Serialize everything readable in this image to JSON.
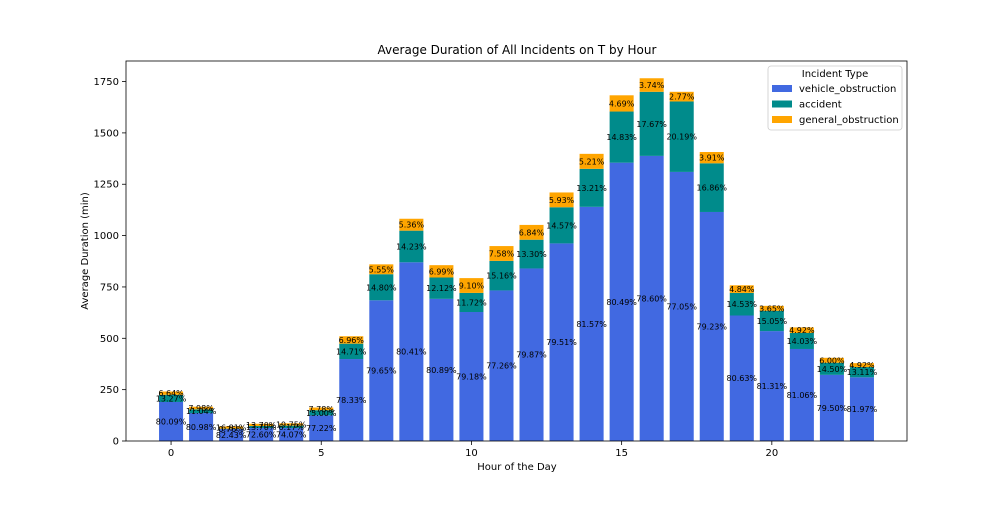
{
  "chart_data": {
    "type": "bar",
    "stacked": true,
    "title": "Average Duration of All Incidents on T by Hour",
    "xlabel": "Hour of the Day",
    "ylabel": "Average Duration (min)",
    "x": [
      0,
      1,
      2,
      3,
      4,
      5,
      6,
      7,
      8,
      9,
      10,
      11,
      12,
      13,
      14,
      15,
      16,
      17,
      18,
      19,
      20,
      21,
      22,
      23
    ],
    "xlim": [
      -1.5,
      24.5
    ],
    "ylim": [
      0,
      1850
    ],
    "xticks": [
      0,
      5,
      10,
      15,
      20
    ],
    "xtick_labels": [
      "0",
      "5",
      "10",
      "15",
      "20"
    ],
    "yticks": [
      0,
      250,
      500,
      750,
      1000,
      1250,
      1500,
      1750
    ],
    "ytick_labels": [
      "0",
      "250",
      "500",
      "750",
      "1000",
      "1250",
      "1500",
      "1750"
    ],
    "grid": false,
    "legend": {
      "title": "Incident Type",
      "position": "top-right"
    },
    "series": [
      {
        "name": "vehicle_obstruction",
        "color": "#4169e1",
        "values": [
          190,
          136,
          58,
          63,
          63,
          125,
          399,
          685,
          870,
          692,
          628,
          733,
          840,
          962,
          1140,
          1355,
          1388,
          1310,
          1115,
          611,
          535,
          448,
          322,
          310
        ],
        "labels": [
          "80.09%",
          "80.98%",
          "82.43%",
          "72.60%",
          "74.07%",
          "77.22%",
          "78.33%",
          "79.65%",
          "80.41%",
          "80.89%",
          "79.18%",
          "77.26%",
          "79.87%",
          "79.51%",
          "81.57%",
          "80.49%",
          "78.60%",
          "77.05%",
          "79.23%",
          "80.63%",
          "81.31%",
          "81.06%",
          "79.50%",
          "81.97%"
        ]
      },
      {
        "name": "accident",
        "color": "#008b8b",
        "values": [
          35,
          18,
          2,
          10,
          12,
          25,
          75,
          127,
          154,
          104,
          93,
          144,
          140,
          176,
          185,
          249,
          312,
          343,
          237,
          110,
          99,
          78,
          59,
          50
        ],
        "labels": [
          "13.27%",
          "11.04%",
          "0.76%",
          "13.70%",
          "6.17%",
          "15.00%",
          "14.71%",
          "14.80%",
          "14.23%",
          "12.12%",
          "11.72%",
          "15.16%",
          "13.30%",
          "14.57%",
          "13.21%",
          "14.83%",
          "17.67%",
          "20.19%",
          "16.86%",
          "14.53%",
          "15.05%",
          "14.03%",
          "14.50%",
          "13.11%"
        ]
      },
      {
        "name": "general_obstruction",
        "color": "#ffa500",
        "values": [
          16,
          13,
          11,
          11,
          11,
          13,
          36,
          48,
          58,
          60,
          72,
          72,
          72,
          72,
          73,
          79,
          66,
          47,
          55,
          37,
          24,
          27,
          24,
          19
        ],
        "labels": [
          "6.64%",
          "7.98%",
          "16.81%",
          "13.70%",
          "19.75%",
          "7.78%",
          "6.96%",
          "5.55%",
          "5.36%",
          "6.99%",
          "9.10%",
          "7.58%",
          "6.84%",
          "5.93%",
          "5.21%",
          "4.69%",
          "3.74%",
          "2.77%",
          "3.91%",
          "4.84%",
          "3.65%",
          "4.92%",
          "6.00%",
          "4.92%"
        ]
      }
    ]
  }
}
